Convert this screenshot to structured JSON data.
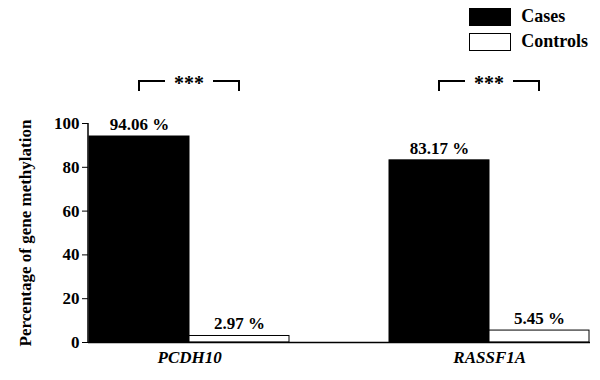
{
  "chart_data": {
    "type": "bar",
    "categories": [
      "PCDH10",
      "RASSF1A"
    ],
    "series": [
      {
        "name": "Cases",
        "color": "#000000",
        "values": [
          94.06,
          83.17
        ],
        "value_labels": [
          "94.06 %",
          "83.17 %"
        ]
      },
      {
        "name": "Controls",
        "color": "#ffffff",
        "values": [
          2.97,
          5.45
        ],
        "value_labels": [
          "2.97 %",
          "5.45 %"
        ]
      }
    ],
    "ylabel": "Percentage of gene methylation",
    "ylim": [
      0,
      100
    ],
    "yticks": [
      0,
      20,
      40,
      60,
      80,
      100
    ],
    "legend": "top-right",
    "data_labels": true,
    "annotations": [
      {
        "text": "***",
        "category": "PCDH10"
      },
      {
        "text": "***",
        "category": "RASSF1A"
      }
    ]
  }
}
